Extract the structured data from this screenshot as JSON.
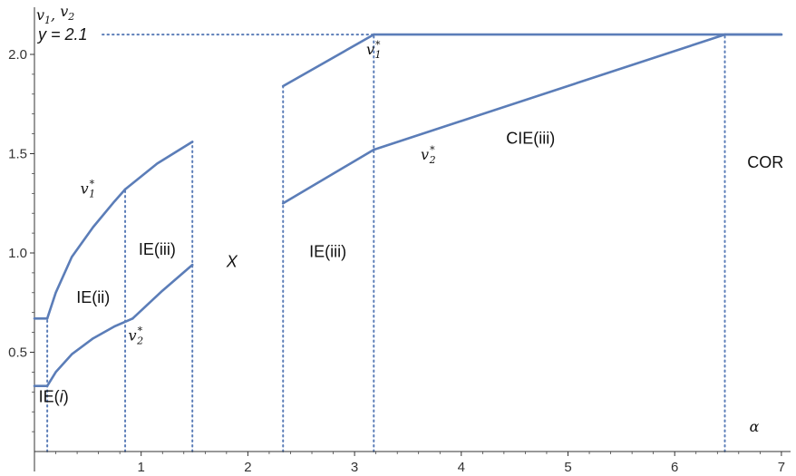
{
  "chart_data": {
    "type": "line",
    "title": "",
    "xlabel": "α",
    "ylabel_parts": {
      "v1": "v",
      "s1": "1",
      "sep": ",",
      "v2": "v",
      "s2": "2"
    },
    "xlim": [
      0,
      7
    ],
    "ylim": [
      0,
      2.1
    ],
    "x_ticks": [
      1,
      2,
      3,
      4,
      5,
      6,
      7
    ],
    "y_ticks": [
      0.5,
      1.0,
      1.5,
      2.0
    ],
    "y_tick_labels": [
      "0.5",
      "1.0",
      "1.5",
      "2.0"
    ],
    "grid": false,
    "line_color": "#5b7db8",
    "series": [
      {
        "segments": [
          [
            [
              0,
              0.67
            ],
            [
              0.12,
              0.67
            ]
          ],
          [
            [
              0.12,
              0.67
            ],
            [
              0.2,
              0.8
            ],
            [
              0.35,
              0.98
            ],
            [
              0.55,
              1.13
            ],
            [
              0.75,
              1.26
            ],
            [
              0.85,
              1.32
            ]
          ],
          [
            [
              0.85,
              1.32
            ],
            [
              1.15,
              1.45
            ],
            [
              1.48,
              1.56
            ]
          ],
          [
            [
              2.33,
              1.84
            ],
            [
              3.18,
              2.1
            ]
          ],
          [
            [
              3.18,
              2.1
            ],
            [
              7,
              2.1
            ]
          ]
        ]
      },
      {
        "segments": [
          [
            [
              0,
              0.33
            ],
            [
              0.12,
              0.33
            ]
          ],
          [
            [
              0.12,
              0.33
            ],
            [
              0.2,
              0.4
            ],
            [
              0.35,
              0.49
            ],
            [
              0.55,
              0.57
            ],
            [
              0.75,
              0.63
            ],
            [
              0.92,
              0.67
            ]
          ],
          [
            [
              0.92,
              0.67
            ],
            [
              1.2,
              0.81
            ],
            [
              1.48,
              0.94
            ]
          ],
          [
            [
              2.33,
              1.25
            ],
            [
              3.18,
              1.52
            ]
          ],
          [
            [
              3.18,
              1.52
            ],
            [
              6.47,
              2.1
            ]
          ],
          [
            [
              6.47,
              2.1
            ],
            [
              7,
              2.1
            ]
          ]
        ]
      }
    ],
    "dotted_lines": [
      {
        "x": 0.12,
        "y_from": 0,
        "y_to": 0.67
      },
      {
        "x": 0.85,
        "y_from": 0,
        "y_to": 1.32
      },
      {
        "x": 1.48,
        "y_from": 0,
        "y_to": 1.56
      },
      {
        "x": 2.33,
        "y_from": 0,
        "y_to": 1.84
      },
      {
        "x": 3.18,
        "y_from": 0,
        "y_to": 2.1
      },
      {
        "x": 6.47,
        "y_from": 0,
        "y_to": 2.1
      }
    ],
    "reference_line": {
      "y": 2.1,
      "x_from": 0,
      "x_to": 3.18,
      "label": "y = 2.1"
    },
    "annotations": [
      {
        "id": "ie-i",
        "text_parts": [
          "IE(",
          "i",
          ")"
        ],
        "x": 0.18,
        "y": 0.25
      },
      {
        "id": "ie-ii",
        "text": "IE(ii)",
        "x": 0.55,
        "y": 0.75
      },
      {
        "id": "ie-iii-1",
        "text": "IE(iii)",
        "x": 1.15,
        "y": 0.99
      },
      {
        "id": "x-region",
        "text": "X",
        "x": 1.85,
        "y": 0.93
      },
      {
        "id": "ie-iii-2",
        "text": "IE(iii)",
        "x": 2.75,
        "y": 0.98
      },
      {
        "id": "cie-iii",
        "text": "CIE(iii)",
        "x": 4.65,
        "y": 1.55
      },
      {
        "id": "cor",
        "text": "COR",
        "x": 6.85,
        "y": 1.43
      }
    ],
    "var_labels": [
      {
        "id": "v1-star-left",
        "base": "v",
        "sub": "1",
        "sup": "*",
        "x": 0.5,
        "y": 1.3
      },
      {
        "id": "v2-star-left",
        "base": "v",
        "sub": "2",
        "sup": "*",
        "x": 0.95,
        "y": 0.56
      },
      {
        "id": "v1-star-right",
        "base": "v",
        "sub": "1",
        "sup": "*",
        "x": 3.18,
        "y": 2.0
      },
      {
        "id": "v2-star-right",
        "base": "v",
        "sub": "2",
        "sup": "*",
        "x": 3.69,
        "y": 1.47
      }
    ]
  }
}
